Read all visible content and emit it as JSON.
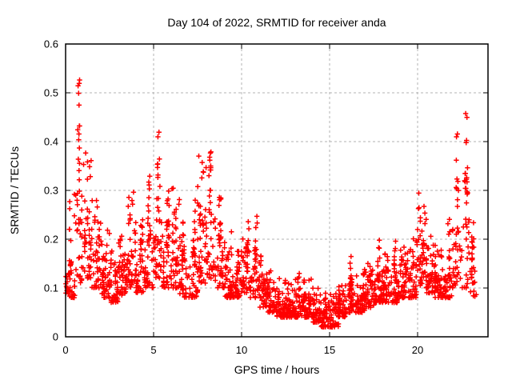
{
  "figure": {
    "background_color": "#ffffff",
    "border_color": "#000000",
    "grid_color": "#b3b3b3",
    "text_color": "#000000"
  },
  "chart_data": {
    "type": "scatter",
    "title": "Day 104 of 2022, SRMTID for receiver anda",
    "xlabel": "GPS time / hours",
    "ylabel": "SRMTID / TECUs",
    "xlim": [
      0,
      24
    ],
    "ylim": [
      0,
      0.6
    ],
    "xticks": [
      0,
      5,
      10,
      15,
      20
    ],
    "xtick_labels": [
      "0",
      "5",
      "10",
      "15",
      "20"
    ],
    "yticks": [
      0,
      0.1,
      0.2,
      0.3,
      0.4,
      0.5,
      0.6
    ],
    "ytick_labels": [
      "0",
      "0.1",
      "0.2",
      "0.3",
      "0.4",
      "0.5",
      "0.6"
    ],
    "grid": true,
    "grid_style": "dashed",
    "legend": "none",
    "marker": {
      "shape": "plus",
      "color": "#ff0000",
      "size": 7,
      "stroke_width": 1.5
    },
    "series_name": "SRMTID",
    "seed": 42,
    "bins_format": [
      "x_start_hour",
      "x_end_hour",
      "count",
      "y_low_TECU",
      "y_high_TECU",
      "y_max_TECU"
    ],
    "bins": [
      [
        0.0,
        0.5,
        40,
        0.08,
        0.17,
        0.33
      ],
      [
        0.5,
        1.0,
        40,
        0.11,
        0.45,
        0.54
      ],
      [
        1.0,
        1.5,
        38,
        0.12,
        0.33,
        0.38
      ],
      [
        1.5,
        2.0,
        36,
        0.1,
        0.24,
        0.28
      ],
      [
        2.0,
        2.5,
        38,
        0.08,
        0.18,
        0.22
      ],
      [
        2.5,
        3.0,
        38,
        0.07,
        0.15,
        0.18
      ],
      [
        3.0,
        3.5,
        38,
        0.08,
        0.17,
        0.21
      ],
      [
        3.5,
        4.0,
        38,
        0.1,
        0.26,
        0.3
      ],
      [
        4.0,
        4.5,
        38,
        0.09,
        0.2,
        0.26
      ],
      [
        4.5,
        5.0,
        38,
        0.1,
        0.27,
        0.33
      ],
      [
        5.0,
        5.5,
        40,
        0.12,
        0.35,
        0.42
      ],
      [
        5.5,
        6.0,
        38,
        0.1,
        0.24,
        0.3
      ],
      [
        6.0,
        6.5,
        38,
        0.1,
        0.26,
        0.31
      ],
      [
        6.5,
        7.0,
        38,
        0.08,
        0.19,
        0.25
      ],
      [
        7.0,
        7.5,
        38,
        0.08,
        0.2,
        0.28
      ],
      [
        7.5,
        8.0,
        40,
        0.11,
        0.33,
        0.38
      ],
      [
        8.0,
        8.5,
        40,
        0.12,
        0.35,
        0.41
      ],
      [
        8.5,
        9.0,
        38,
        0.1,
        0.24,
        0.3
      ],
      [
        9.0,
        9.5,
        38,
        0.08,
        0.17,
        0.22
      ],
      [
        9.5,
        10.0,
        38,
        0.08,
        0.15,
        0.2
      ],
      [
        10.0,
        10.5,
        38,
        0.09,
        0.19,
        0.24
      ],
      [
        10.5,
        11.0,
        38,
        0.08,
        0.19,
        0.25
      ],
      [
        11.0,
        11.5,
        38,
        0.06,
        0.13,
        0.17
      ],
      [
        11.5,
        12.0,
        38,
        0.05,
        0.1,
        0.14
      ],
      [
        12.0,
        12.5,
        40,
        0.04,
        0.09,
        0.12
      ],
      [
        12.5,
        13.0,
        40,
        0.04,
        0.08,
        0.11
      ],
      [
        13.0,
        13.5,
        40,
        0.04,
        0.1,
        0.14
      ],
      [
        13.5,
        14.0,
        40,
        0.04,
        0.09,
        0.12
      ],
      [
        14.0,
        14.5,
        40,
        0.03,
        0.08,
        0.1
      ],
      [
        14.5,
        15.0,
        40,
        0.02,
        0.07,
        0.09
      ],
      [
        15.0,
        15.5,
        40,
        0.02,
        0.07,
        0.09
      ],
      [
        15.5,
        16.0,
        40,
        0.04,
        0.09,
        0.11
      ],
      [
        16.0,
        16.5,
        40,
        0.05,
        0.12,
        0.17
      ],
      [
        16.5,
        17.0,
        40,
        0.05,
        0.11,
        0.14
      ],
      [
        17.0,
        17.5,
        40,
        0.06,
        0.13,
        0.16
      ],
      [
        17.5,
        18.0,
        40,
        0.07,
        0.15,
        0.2
      ],
      [
        18.0,
        18.5,
        40,
        0.07,
        0.14,
        0.18
      ],
      [
        18.5,
        19.0,
        40,
        0.07,
        0.15,
        0.2
      ],
      [
        19.0,
        19.5,
        40,
        0.08,
        0.16,
        0.21
      ],
      [
        19.5,
        20.0,
        40,
        0.08,
        0.18,
        0.22
      ],
      [
        20.0,
        20.5,
        40,
        0.1,
        0.25,
        0.3
      ],
      [
        20.5,
        21.0,
        38,
        0.09,
        0.17,
        0.22
      ],
      [
        21.0,
        21.5,
        38,
        0.08,
        0.15,
        0.18
      ],
      [
        21.5,
        22.0,
        36,
        0.08,
        0.18,
        0.3
      ],
      [
        22.0,
        22.5,
        36,
        0.1,
        0.32,
        0.42
      ],
      [
        22.5,
        23.0,
        34,
        0.1,
        0.36,
        0.46
      ],
      [
        23.0,
        23.3,
        24,
        0.08,
        0.2,
        0.26
      ]
    ]
  }
}
